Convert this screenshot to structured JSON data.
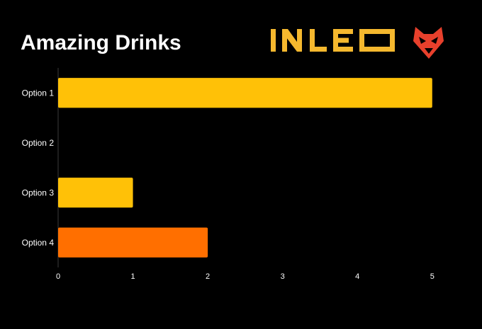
{
  "title": "Amazing Drinks",
  "logo": {
    "wordmark": "INLEO",
    "wordmark_color": "#f5b82e",
    "mark_icon": "lion-head-icon",
    "mark_color": "#e8402c"
  },
  "colors": {
    "background": "#000000",
    "text": "#ffffff",
    "axis": "#3a3a3a"
  },
  "chart_data": {
    "type": "bar",
    "orientation": "horizontal",
    "title": "Amazing Drinks",
    "xlabel": "",
    "ylabel": "",
    "categories": [
      "Option 1",
      "Option 2",
      "Option 3",
      "Option 4"
    ],
    "values": [
      5,
      0,
      1,
      2
    ],
    "bar_colors": [
      "#ffc107",
      "#ffc107",
      "#ffc107",
      "#ff6f00"
    ],
    "xlim": [
      0,
      5.4
    ],
    "xticks": [
      0,
      1,
      2,
      3,
      4,
      5
    ],
    "grid": false,
    "legend": "none"
  }
}
